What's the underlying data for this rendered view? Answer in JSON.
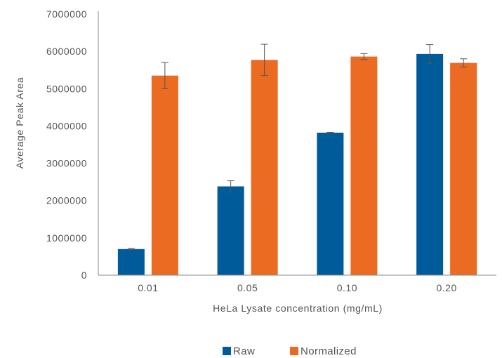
{
  "chart_data": {
    "type": "bar",
    "title": "",
    "xlabel": "HeLa Lysate concentration (mg/mL)",
    "ylabel": "Average Peak Area",
    "categories": [
      "0.01",
      "0.05",
      "0.10",
      "0.20"
    ],
    "ylim": [
      0,
      7000000
    ],
    "yticks": [
      0,
      1000000,
      2000000,
      3000000,
      4000000,
      5000000,
      6000000,
      7000000
    ],
    "ytick_labels": [
      "0",
      "1000000",
      "2000000",
      "3000000",
      "4000000",
      "5000000",
      "6000000",
      "7000000"
    ],
    "grid": false,
    "legend_position": "bottom",
    "series": [
      {
        "name": "Raw",
        "color": "#005b9a",
        "values": [
          700000,
          2380000,
          3820000,
          5930000
        ],
        "errors": [
          20000,
          150000,
          10000,
          250000
        ]
      },
      {
        "name": "Normalized",
        "color": "#eb6b22",
        "values": [
          5350000,
          5770000,
          5860000,
          5690000
        ],
        "errors": [
          350000,
          420000,
          80000,
          110000
        ]
      }
    ]
  }
}
